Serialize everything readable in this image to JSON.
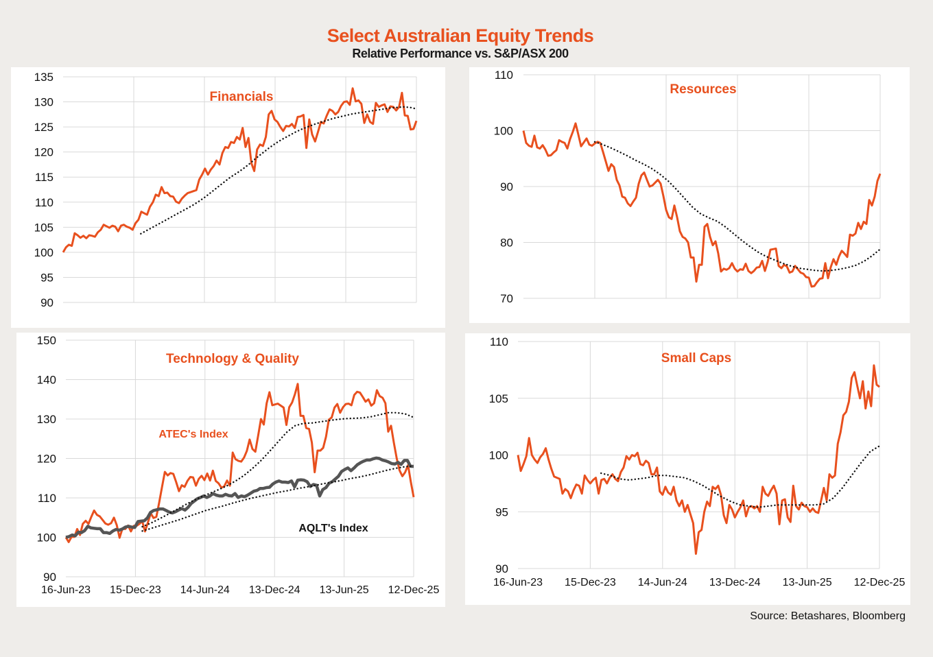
{
  "header": {
    "title": "Select Australian Equity Trends",
    "subtitle": "Relative Performance vs. S&P/ASX 200"
  },
  "source": "Source:  Betashares, Bloomberg",
  "colors": {
    "primary": "#e8501e",
    "trend": "#111111",
    "secondary": "#555555",
    "grid": "#d9d9d9"
  },
  "chart_data": [
    {
      "id": "financials",
      "type": "line",
      "title": "Financials",
      "x_start": "16-Jun-23",
      "x_end": "12-Dec-25",
      "xticks": [],
      "ylim": [
        90,
        135
      ],
      "yticks": [
        90,
        95,
        100,
        105,
        110,
        115,
        120,
        125,
        130,
        135
      ],
      "grid": true,
      "series": [
        {
          "name": "Financials",
          "style": "solid-orange",
          "values": [
            100,
            101,
            101.5,
            101.3,
            103.8,
            103.4,
            102.9,
            103.3,
            102.8,
            103.4,
            103.3,
            103.1,
            104.0,
            104.5,
            105.5,
            105.2,
            104.9,
            105.3,
            105.1,
            104.2,
            105.3,
            105.5,
            105.1,
            104.9,
            104.5,
            105.8,
            106.5,
            108.1,
            107.8,
            107.5,
            109.1,
            110.0,
            111.5,
            111.2,
            113.0,
            111.8,
            111.9,
            111.2,
            111.1,
            110.1,
            109.8,
            110.7,
            111.3,
            111.8,
            112.0,
            112.2,
            112.4,
            114.5,
            115.5,
            116.7,
            115.5,
            116.5,
            117.2,
            118.3,
            117.5,
            119.8,
            121.0,
            120.8,
            122.0,
            121.8,
            123.0,
            122.5,
            124.8,
            121.0,
            122.8,
            117.8,
            116.2,
            120.5,
            121.5,
            121.2,
            123.0,
            127.5,
            128.2,
            126.5,
            126.0,
            125.0,
            124.2,
            125.2,
            125.1,
            125.6,
            124.8,
            127.0,
            127.1,
            127.4,
            120.8,
            126.5,
            123.5,
            122.1,
            124.0,
            126.0,
            125.7,
            127.2,
            128.5,
            128.2,
            127.5,
            128.0,
            129.2,
            130.0,
            130.1,
            129.4,
            132.7,
            130.1,
            130.3,
            129.6,
            125.8,
            127.5,
            126.0,
            125.6,
            129.8,
            129.0,
            129.3,
            129.5,
            128.0,
            129.1,
            129.0,
            128.3,
            129.0,
            131.8,
            127.3,
            127.2,
            124.5,
            124.6,
            126.2
          ]
        },
        {
          "name": "Trend",
          "style": "dotted-black",
          "start_fraction": 0.22,
          "values": [
            103.7,
            104.4,
            105.1,
            105.8,
            106.5,
            107.2,
            107.9,
            108.6,
            109.3,
            110.1,
            111.0,
            112.0,
            113.0,
            114.0,
            115.0,
            115.8,
            116.7,
            117.7,
            118.8,
            119.8,
            120.8,
            121.7,
            122.5,
            123.2,
            123.9,
            124.5,
            125.0,
            125.5,
            125.9,
            126.3,
            126.7,
            127.0,
            127.3,
            127.6,
            127.8,
            128.0,
            128.2,
            128.4,
            128.6,
            128.8,
            128.9,
            129.0,
            128.9,
            128.6
          ]
        }
      ]
    },
    {
      "id": "resources",
      "type": "line",
      "title": "Resources",
      "x_start": "16-Jun-23",
      "x_end": "12-Dec-25",
      "xticks": [],
      "ylim": [
        70,
        110
      ],
      "yticks": [
        70,
        80,
        90,
        100,
        110
      ],
      "grid": true,
      "series": [
        {
          "name": "Resources",
          "style": "solid-orange",
          "values": [
            100,
            97.8,
            97.3,
            97.1,
            99.1,
            97.0,
            96.8,
            97.4,
            96.6,
            95.5,
            95.6,
            96.1,
            96.5,
            98.3,
            98.0,
            97.8,
            96.8,
            98.5,
            99.8,
            101.3,
            99.3,
            97.2,
            97.9,
            98.6,
            97.5,
            97.3,
            97.7,
            98.0,
            97.8,
            96.2,
            94.5,
            92.8,
            94.0,
            93.5,
            91.2,
            90.2,
            88.2,
            88.0,
            87.0,
            86.5,
            87.3,
            88.0,
            90.5,
            92.0,
            92.5,
            91.2,
            90.0,
            90.2,
            90.7,
            91.2,
            90.5,
            88.3,
            85.8,
            84.5,
            84.2,
            86.6,
            84.5,
            82.0,
            81.0,
            80.7,
            80.0,
            77.3,
            77.3,
            73.0,
            76.0,
            76.0,
            82.8,
            83.3,
            81.0,
            79.5,
            80.2,
            78.0,
            74.8,
            75.3,
            75.1,
            75.4,
            76.3,
            75.3,
            74.8,
            75.2,
            75.1,
            76.2,
            74.9,
            74.5,
            74.9,
            75.5,
            75.6,
            76.7,
            74.9,
            76.5,
            78.7,
            78.8,
            78.9,
            75.8,
            75.4,
            76.0,
            75.7,
            74.6,
            74.8,
            75.8,
            75.2,
            74.6,
            74.4,
            73.8,
            73.7,
            72.1,
            72.2,
            72.9,
            73.5,
            73.6,
            76.3,
            73.6,
            75.6,
            77.0,
            76.0,
            77.5,
            78.5,
            78.0,
            77.4,
            81.4,
            81.2,
            81.6,
            83.5,
            82.4,
            83.7,
            83.3,
            87.6,
            86.6,
            88.2,
            91.0,
            92.3
          ]
        },
        {
          "name": "Trend",
          "style": "dotted-black",
          "start_fraction": 0.2,
          "values": [
            98.0,
            97.5,
            96.9,
            96.2,
            95.5,
            94.7,
            94.0,
            93.2,
            92.2,
            91.0,
            89.5,
            87.9,
            86.3,
            85.1,
            84.4,
            83.8,
            82.8,
            81.6,
            80.4,
            79.3,
            78.3,
            77.5,
            76.9,
            76.3,
            75.8,
            75.4,
            75.2,
            75.0,
            74.9,
            75.0,
            75.2,
            75.5,
            75.9,
            76.6,
            77.6,
            78.8
          ]
        }
      ]
    },
    {
      "id": "technology-quality",
      "type": "line",
      "title": "Technology & Quality",
      "x_start": "16-Jun-23",
      "x_end": "12-Dec-25",
      "xticks": [
        "16-Jun-23",
        "15-Dec-23",
        "14-Jun-24",
        "13-Dec-24",
        "13-Jun-25",
        "12-Dec-25"
      ],
      "ylim": [
        90,
        150
      ],
      "yticks": [
        90,
        100,
        110,
        120,
        130,
        140,
        150
      ],
      "grid": true,
      "annotations": [
        {
          "text": "ATEC's Index",
          "color": "#e8501e"
        },
        {
          "text": "AQLT's Index",
          "color": "#111111"
        }
      ],
      "series": [
        {
          "name": "ATEC's Index",
          "style": "solid-orange",
          "values": [
            100,
            98.8,
            100.1,
            100.1,
            102.1,
            100.6,
            103.4,
            104.2,
            103.4,
            105.2,
            106.8,
            105.7,
            105.3,
            104.4,
            103.5,
            103.2,
            103.6,
            105.0,
            103.1,
            99.9,
            102.2,
            102.1,
            103.0,
            101.5,
            102.9,
            102.9,
            103.4,
            104.1,
            101.5,
            103.7,
            106.1,
            104.9,
            105.2,
            108.8,
            112.7,
            116.6,
            115.7,
            116.3,
            116.1,
            114.0,
            111.7,
            113.2,
            112.8,
            114.3,
            115.3,
            115.2,
            113.1,
            114.8,
            115.6,
            114.5,
            116.2,
            114.4,
            116.9,
            114.3,
            113.7,
            112.6,
            112.9,
            114.4,
            113.1,
            121.5,
            119.8,
            119.4,
            119.2,
            120.2,
            121.9,
            124.8,
            122.4,
            121.7,
            125.8,
            130.0,
            128.6,
            134.0,
            136.8,
            133.5,
            133.7,
            133.9,
            133.4,
            132.9,
            128.5,
            133.0,
            134.2,
            136.3,
            138.9,
            130.8,
            130.8,
            127.7,
            127.5,
            124.0,
            116.5,
            122.0,
            122.0,
            122.7,
            125.5,
            129.8,
            130.4,
            132.9,
            133.8,
            131.6,
            133.0,
            133.8,
            133.9,
            133.5,
            136.1,
            136.9,
            136.7,
            135.6,
            134.4,
            135.0,
            133.4,
            134.0,
            137.3,
            135.8,
            135.4,
            134.0,
            126.8,
            128.3,
            124.0,
            120.0,
            117.0,
            115.5,
            116.5,
            118.3,
            114.0,
            110.2
          ]
        },
        {
          "name": "AQLT's Index",
          "style": "solid-grey",
          "values": [
            100,
            100.2,
            100.6,
            100.4,
            101.3,
            101.2,
            101.7,
            102.8,
            102.4,
            102.3,
            102.2,
            102.2,
            101.2,
            101.2,
            101.0,
            101.6,
            102.0,
            101.8,
            102.1,
            102.6,
            102.8,
            102.6,
            102.5,
            104.0,
            104.1,
            104.2,
            104.9,
            106.3,
            106.8,
            107.0,
            107.2,
            107.2,
            106.8,
            106.4,
            106.2,
            106.5,
            106.9,
            107.3,
            106.9,
            107.6,
            108.6,
            109.2,
            109.8,
            110.1,
            110.5,
            110.1,
            110.5,
            111.1,
            110.7,
            110.5,
            110.5,
            110.9,
            110.6,
            110.5,
            111.1,
            110.1,
            110.5,
            110.3,
            110.7,
            111.2,
            111.7,
            111.9,
            112.4,
            112.4,
            112.6,
            112.7,
            113.5,
            114.0,
            114.3,
            114.0,
            114.0,
            113.9,
            114.3,
            112.8,
            114.5,
            114.6,
            114.5,
            114.1,
            112.9,
            113.4,
            113.2,
            110.5,
            112.1,
            112.6,
            113.7,
            114.1,
            114.8,
            115.5,
            116.7,
            117.2,
            117.6,
            116.9,
            117.6,
            118.4,
            118.9,
            119.3,
            119.6,
            119.6,
            119.9,
            120.1,
            120.0,
            119.6,
            119.4,
            119.1,
            118.7,
            118.6,
            119.0,
            118.5,
            119.5,
            119.5,
            118.0,
            118.0
          ]
        },
        {
          "name": "ATEC Trend",
          "style": "dotted-black",
          "start_fraction": 0.22,
          "values": [
            102.7,
            103.6,
            104.7,
            105.8,
            107.0,
            108.2,
            109.3,
            110.3,
            111.2,
            112.1,
            113.1,
            114.3,
            115.7,
            117.5,
            119.5,
            121.8,
            124.2,
            126.6,
            128.3,
            128.9,
            129.0,
            129.3,
            129.6,
            129.9,
            130.1,
            130.2,
            130.3,
            130.6,
            131.1,
            131.6,
            131.6,
            131.3,
            130.4
          ]
        },
        {
          "name": "AQLT Trend",
          "style": "dotted-black",
          "start_fraction": 0.22,
          "values": [
            101.6,
            102.3,
            103.0,
            103.7,
            104.4,
            105.2,
            106.0,
            106.8,
            107.4,
            108.0,
            108.7,
            109.3,
            109.9,
            110.4,
            110.9,
            111.4,
            111.8,
            112.3,
            112.7,
            113.1,
            113.6,
            114.0,
            114.4,
            114.9,
            115.3,
            115.8,
            116.4,
            117.0,
            117.5,
            117.9,
            118.1
          ]
        }
      ]
    },
    {
      "id": "small-caps",
      "type": "line",
      "title": "Small Caps",
      "x_start": "16-Jun-23",
      "x_end": "12-Dec-25",
      "xticks": [
        "16-Jun-23",
        "15-Dec-23",
        "14-Jun-24",
        "13-Dec-24",
        "13-Jun-25",
        "12-Dec-25"
      ],
      "ylim": [
        90,
        110
      ],
      "yticks": [
        90,
        95,
        100,
        105,
        110
      ],
      "grid": true,
      "series": [
        {
          "name": "Small Caps",
          "style": "solid-orange",
          "values": [
            100,
            98.6,
            99.2,
            99.9,
            101.5,
            100.0,
            99.6,
            99.3,
            99.8,
            100.1,
            100.6,
            99.6,
            98.8,
            98.1,
            98.0,
            97.9,
            96.6,
            97.0,
            96.8,
            96.2,
            96.9,
            97.4,
            97.3,
            96.6,
            98.2,
            97.8,
            97.5,
            97.8,
            98.0,
            96.6,
            97.8,
            97.9,
            97.5,
            98.0,
            98.3,
            97.9,
            97.7,
            98.5,
            98.9,
            99.9,
            99.6,
            100.0,
            99.9,
            100.2,
            99.2,
            99.1,
            99.5,
            99.3,
            98.3,
            98.3,
            98.9,
            96.8,
            96.5,
            97.2,
            96.7,
            96.5,
            97.2,
            96.0,
            95.5,
            96.0,
            95.0,
            95.6,
            94.8,
            94.0,
            91.3,
            93.2,
            93.4,
            95.0,
            95.9,
            95.5,
            97.2,
            97.0,
            97.3,
            96.5,
            94.7,
            94.0,
            95.6,
            95.2,
            94.5,
            95.0,
            95.4,
            96.0,
            94.6,
            95.4,
            95.5,
            95.3,
            95.5,
            95.0,
            97.2,
            96.6,
            96.4,
            96.9,
            97.3,
            96.6,
            93.9,
            96.0,
            96.1,
            94.5,
            94.1,
            97.3,
            95.5,
            95.2,
            95.8,
            95.5,
            95.4,
            95.0,
            95.3,
            95.0,
            94.9,
            96.0,
            97.1,
            96.0,
            98.3,
            98.0,
            98.2,
            101.0,
            102.0,
            103.5,
            103.8,
            104.7,
            106.8,
            107.3,
            106.1,
            105.0,
            106.5,
            104.1,
            105.6,
            104.3,
            107.9,
            106.2,
            106.0
          ]
        },
        {
          "name": "Trend",
          "style": "dotted-black",
          "start_fraction": 0.23,
          "values": [
            98.4,
            98.2,
            97.9,
            97.8,
            97.9,
            98.0,
            98.2,
            98.2,
            98.1,
            98.0,
            97.7,
            97.3,
            96.8,
            96.3,
            95.9,
            95.6,
            95.5,
            95.4,
            95.5,
            95.6,
            95.6,
            95.6,
            95.6,
            95.6,
            95.7,
            96.2,
            97.1,
            98.2,
            99.3,
            100.3,
            100.8
          ]
        }
      ]
    }
  ]
}
